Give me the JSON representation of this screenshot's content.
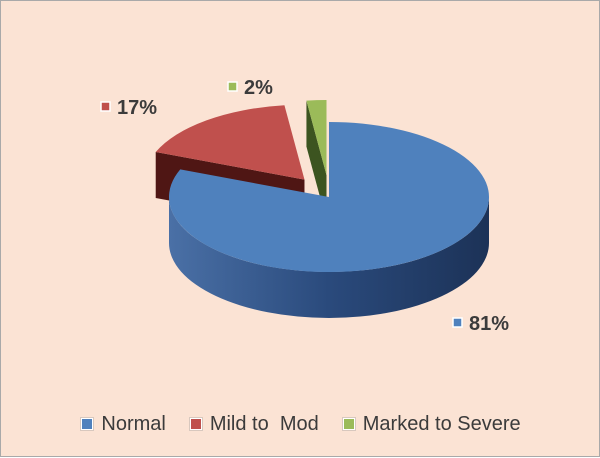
{
  "chart_data": {
    "type": "pie",
    "style": "3d-exploded",
    "slices": [
      {
        "label": "Normal",
        "value": 81,
        "data_label": "81%",
        "color": "#4f81bd",
        "side_color": "#1f3a63"
      },
      {
        "label": "Mild to  Mod",
        "value": 17,
        "data_label": "17%",
        "color": "#c0504d",
        "side_color": "#4f1614"
      },
      {
        "label": "Marked to Severe",
        "value": 2,
        "data_label": "2%",
        "color": "#9bbb59",
        "side_color": "#3c5420"
      }
    ],
    "legend_position": "bottom",
    "background": "#fbe3d4"
  }
}
